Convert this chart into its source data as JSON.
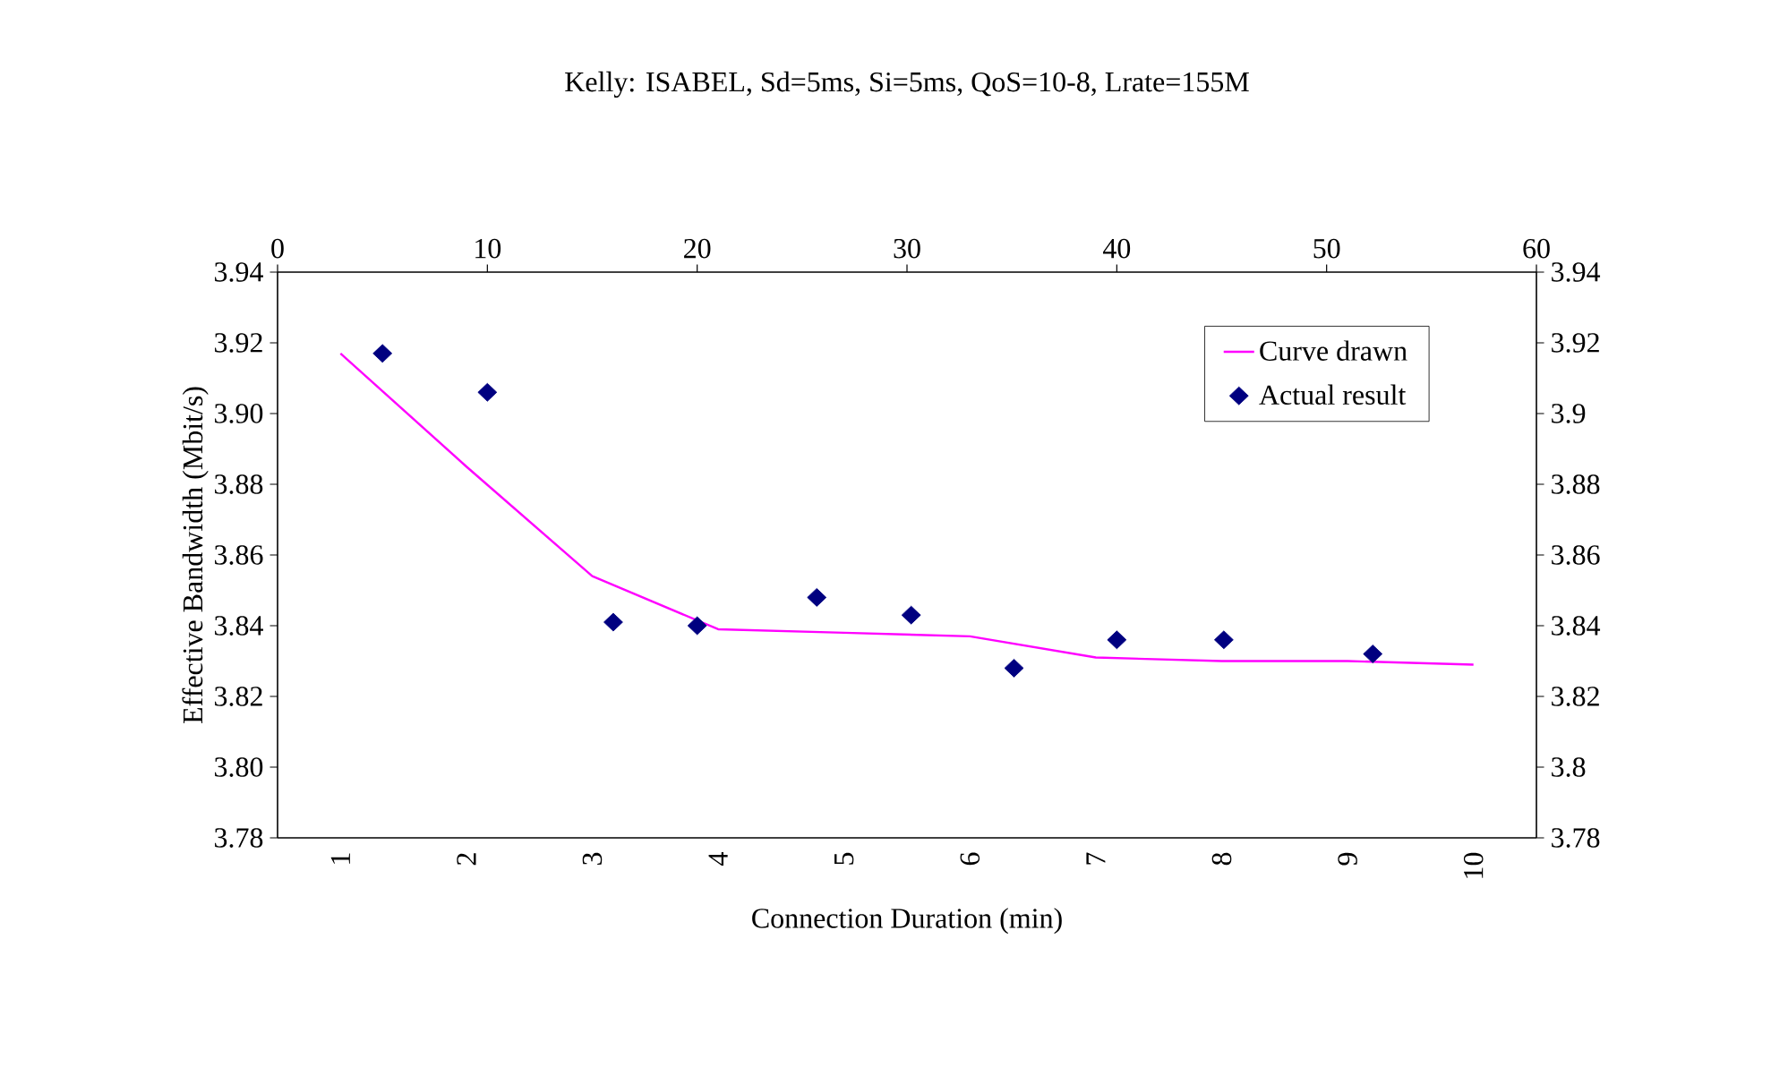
{
  "chart_data": {
    "type": "line",
    "title": "Kelly: ISABEL, Sd=5ms, Si=5ms, QoS=10-8, Lrate=155M",
    "xlabel": "Connection Duration (min)",
    "ylabel": "Effective Bandwidth (Mbit/s)",
    "categories": [
      "1",
      "2",
      "3",
      "4",
      "5",
      "6",
      "7",
      "8",
      "9",
      "10"
    ],
    "ylim": [
      3.78,
      3.94
    ],
    "yticks": [
      3.78,
      {
        "value": 3.8,
        "label": "3.80"
      },
      3.82,
      3.84,
      3.86,
      3.88,
      {
        "value": 3.9,
        "label": "3.90"
      },
      3.92,
      3.94
    ],
    "y2lim": [
      3.78,
      3.94
    ],
    "y2ticks": [
      3.78,
      3.8,
      3.82,
      3.84,
      3.86,
      3.88,
      3.9,
      3.92,
      3.94
    ],
    "x2lim": [
      0,
      60
    ],
    "x2ticks": [
      0,
      10,
      20,
      30,
      40,
      50,
      60
    ],
    "legend": "top right",
    "grid": false,
    "series": [
      {
        "name": "Curve drawn",
        "color": "#ff00ff",
        "line_style": "solid",
        "values": [
          3.917,
          3.885,
          3.854,
          3.839,
          3.838,
          3.837,
          3.831,
          3.83,
          3.83,
          3.829
        ]
      },
      {
        "name": "Actual result",
        "type": "scatter",
        "axis": "x2",
        "marker": "diamond",
        "color": "#000080",
        "x": [
          5,
          10,
          16,
          20,
          25.7,
          30.2,
          35.1,
          40,
          45.1,
          52.2
        ],
        "values": [
          3.917,
          3.906,
          3.841,
          3.84,
          3.848,
          3.843,
          3.828,
          3.836,
          3.836,
          3.832
        ]
      }
    ]
  }
}
